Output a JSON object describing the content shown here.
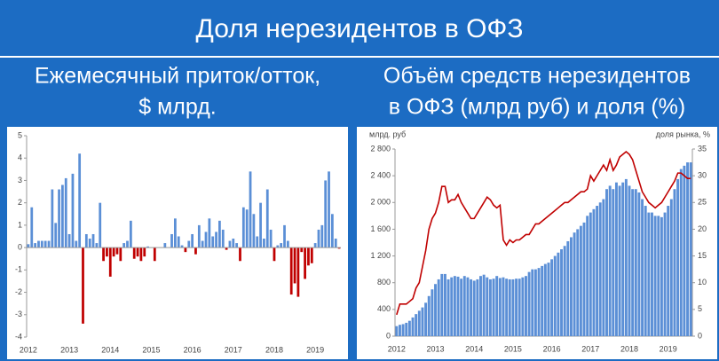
{
  "title": "Доля нерезидентов в ОФЗ",
  "chart_data": [
    {
      "type": "bar",
      "title": [
        "Ежемесячный приток/отток,",
        "$ млрд."
      ],
      "categories": [
        "2012",
        null,
        null,
        null,
        null,
        null,
        null,
        null,
        null,
        null,
        null,
        null,
        "2013",
        null,
        null,
        null,
        null,
        null,
        null,
        null,
        null,
        null,
        null,
        null,
        "2014",
        null,
        null,
        null,
        null,
        null,
        null,
        null,
        null,
        null,
        null,
        null,
        "2015",
        null,
        null,
        null,
        null,
        null,
        null,
        null,
        null,
        null,
        null,
        null,
        "2016",
        null,
        null,
        null,
        null,
        null,
        null,
        null,
        null,
        null,
        null,
        null,
        "2017",
        null,
        null,
        null,
        null,
        null,
        null,
        null,
        null,
        null,
        null,
        null,
        "2018",
        null,
        null,
        null,
        null,
        null,
        null,
        null,
        null,
        null,
        null,
        null,
        "2019",
        null,
        null,
        null,
        null,
        null,
        null,
        null
      ],
      "values": [
        0.15,
        1.8,
        0.2,
        0.3,
        0.3,
        0.3,
        0.3,
        2.6,
        1.1,
        2.6,
        2.8,
        3.1,
        0.6,
        3.3,
        0.3,
        4.2,
        -3.4,
        0.6,
        0.4,
        0.6,
        0.2,
        2.0,
        -0.6,
        -0.4,
        -1.3,
        -0.4,
        -0.3,
        -0.6,
        0.2,
        0.3,
        1.2,
        -0.5,
        -0.4,
        -0.6,
        -0.4,
        0.05,
        0,
        -0.6,
        0,
        0,
        0.2,
        0,
        0.6,
        1.3,
        0.5,
        0.1,
        -0.2,
        0.3,
        0.6,
        -0.3,
        1.0,
        0.3,
        0.7,
        1.3,
        0.5,
        0.7,
        1.2,
        0.8,
        -0.1,
        0.3,
        0.4,
        0.2,
        -0.6,
        1.8,
        1.7,
        3.4,
        1.5,
        0.5,
        2.0,
        0.4,
        2.6,
        0.8,
        -0.6,
        0.1,
        0.2,
        1.0,
        0.3,
        -2.1,
        -1.6,
        -2.2,
        -0.2,
        -1.4,
        -0.8,
        -0.7,
        0.2,
        0.8,
        1.0,
        3.0,
        3.4,
        1.5,
        0.4,
        -0.05
      ],
      "color": "#5b8fd6",
      "negative_color": "#c00000",
      "ylim": [
        -4,
        5
      ],
      "yticks": [
        -4,
        -3,
        -2,
        -1,
        0,
        1,
        2,
        3,
        4,
        5
      ],
      "grid": false
    },
    {
      "type": "combo",
      "title": [
        "Объём средств нерезидентов",
        "в ОФЗ (млрд руб) и доля (%)"
      ],
      "y_label": "млрд. руб",
      "y2_label": "доля рынка, %",
      "categories": [
        "2012",
        null,
        null,
        null,
        null,
        null,
        null,
        null,
        null,
        null,
        null,
        null,
        "2013",
        null,
        null,
        null,
        null,
        null,
        null,
        null,
        null,
        null,
        null,
        null,
        "2014",
        null,
        null,
        null,
        null,
        null,
        null,
        null,
        null,
        null,
        null,
        null,
        "2015",
        null,
        null,
        null,
        null,
        null,
        null,
        null,
        null,
        null,
        null,
        null,
        "2016",
        null,
        null,
        null,
        null,
        null,
        null,
        null,
        null,
        null,
        null,
        null,
        "2017",
        null,
        null,
        null,
        null,
        null,
        null,
        null,
        null,
        null,
        null,
        null,
        "2018",
        null,
        null,
        null,
        null,
        null,
        null,
        null,
        null,
        null,
        null,
        null,
        "2019",
        null,
        null,
        null,
        null,
        null,
        null,
        null
      ],
      "series": [
        {
          "type": "bar",
          "color": "#5b8fd6",
          "values": [
            150,
            170,
            180,
            200,
            230,
            280,
            330,
            380,
            430,
            500,
            600,
            700,
            780,
            850,
            930,
            930,
            850,
            880,
            900,
            890,
            860,
            900,
            880,
            850,
            830,
            850,
            900,
            920,
            880,
            850,
            860,
            900,
            870,
            880,
            860,
            850,
            850,
            860,
            860,
            880,
            900,
            960,
            1000,
            1000,
            1020,
            1050,
            1080,
            1100,
            1150,
            1200,
            1250,
            1300,
            1350,
            1420,
            1480,
            1550,
            1600,
            1650,
            1700,
            1800,
            1850,
            1900,
            1950,
            2000,
            2050,
            2200,
            2250,
            2200,
            2300,
            2250,
            2300,
            2350,
            2250,
            2200,
            2200,
            2150,
            2050,
            1950,
            1850,
            1850,
            1800,
            1800,
            1780,
            1850,
            1950,
            2050,
            2200,
            2350,
            2500,
            2550,
            2600,
            2600
          ]
        },
        {
          "type": "line",
          "color": "#c00000",
          "axis": "y2",
          "values": [
            4,
            6,
            6,
            6,
            6.5,
            7,
            9,
            10,
            13,
            16,
            20,
            22,
            23,
            25,
            28,
            28,
            25,
            25.5,
            25.5,
            26.5,
            25,
            24,
            23,
            22,
            22,
            23,
            24,
            25,
            26,
            25.5,
            24.5,
            24,
            24.5,
            18,
            17,
            18,
            17.5,
            18,
            18,
            18.5,
            19,
            19,
            20,
            21,
            21,
            21.5,
            22,
            22.5,
            23,
            23.5,
            24,
            24.5,
            25,
            25,
            25.5,
            26,
            26.5,
            27,
            27,
            27.5,
            30,
            29,
            30,
            31,
            32,
            31,
            33,
            31,
            32,
            33.5,
            34,
            34.5,
            34,
            33,
            31,
            29,
            27,
            26,
            25,
            24.5,
            24,
            24.5,
            25,
            26,
            27,
            28,
            29,
            30.5,
            30.5,
            30,
            29.5,
            29.5
          ]
        }
      ],
      "ylim": [
        0,
        2800
      ],
      "yticks": [
        0,
        400,
        800,
        {
          "value": 1200,
          "label": "1 200"
        },
        {
          "value": 1600,
          "label": "1 600"
        },
        {
          "value": 2000,
          "label": "2 000"
        },
        {
          "value": 2400,
          "label": "2 400"
        },
        {
          "value": 2800,
          "label": "2 800"
        }
      ],
      "y2lim": [
        0,
        35
      ],
      "y2ticks": [
        0,
        5,
        10,
        15,
        20,
        25,
        30,
        35
      ],
      "grid": false
    }
  ]
}
